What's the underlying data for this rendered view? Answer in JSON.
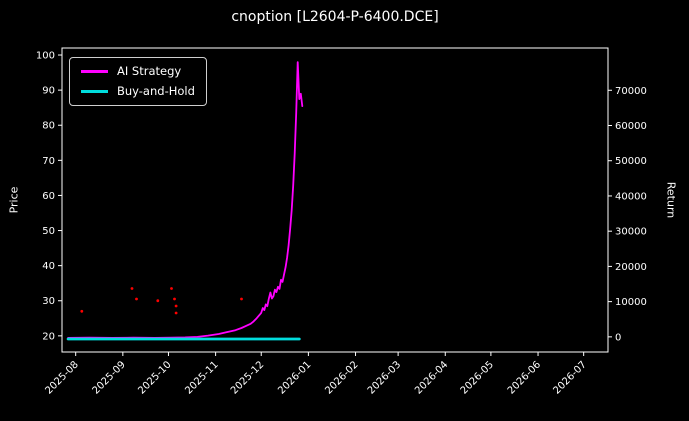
{
  "colors": {
    "background": "#000000",
    "text": "#ffffff",
    "ai_strategy": "#ff00ff",
    "buy_and_hold": "#00dddd",
    "signal_dots": "#ff0000"
  },
  "legend": {
    "items": [
      {
        "label": "AI Strategy",
        "color": "#ff00ff"
      },
      {
        "label": "Buy-and-Hold",
        "color": "#00dddd"
      }
    ]
  },
  "chart_data": {
    "type": "line",
    "title": "cnoption [L2604-P-6400.DCE]",
    "xlabel": "",
    "ylabel_left": "Price",
    "ylabel_right": "Return",
    "x_ticks": [
      "2025-08",
      "2025-09",
      "2025-10",
      "2025-11",
      "2025-12",
      "2026-01",
      "2026-02",
      "2026-03",
      "2026-04",
      "2026-05",
      "2026-06",
      "2026-07"
    ],
    "xlim": [
      "2025-07-23",
      "2026-07-17"
    ],
    "y_left_ticks": [
      20,
      30,
      40,
      50,
      60,
      70,
      80,
      90,
      100
    ],
    "ylim_left": [
      15.4,
      102
    ],
    "y_right_ticks": [
      0,
      10000,
      20000,
      30000,
      40000,
      50000,
      60000,
      70000
    ],
    "ylim_right": [
      -4300,
      82000
    ],
    "grid": false,
    "legend_position": "upper-left",
    "series": [
      {
        "name": "AI Strategy",
        "color": "#ff00ff",
        "axis": "right",
        "width": 1.8,
        "points": [
          [
            "2025-07-27",
            -300
          ],
          [
            "2025-08-10",
            -250
          ],
          [
            "2025-08-25",
            -300
          ],
          [
            "2025-09-08",
            -250
          ],
          [
            "2025-09-22",
            -300
          ],
          [
            "2025-10-03",
            -200
          ],
          [
            "2025-10-12",
            -150
          ],
          [
            "2025-10-20",
            0
          ],
          [
            "2025-10-27",
            350
          ],
          [
            "2025-11-03",
            800
          ],
          [
            "2025-11-08",
            1300
          ],
          [
            "2025-11-14",
            1900
          ],
          [
            "2025-11-18",
            2500
          ],
          [
            "2025-11-21",
            3100
          ],
          [
            "2025-11-24",
            3700
          ],
          [
            "2025-11-26",
            4400
          ],
          [
            "2025-11-28",
            5300
          ],
          [
            "2025-12-01",
            6800
          ],
          [
            "2025-12-02",
            8200
          ],
          [
            "2025-12-03",
            7600
          ],
          [
            "2025-12-04",
            9200
          ],
          [
            "2025-12-05",
            8700
          ],
          [
            "2025-12-06",
            10800
          ],
          [
            "2025-12-07",
            12600
          ],
          [
            "2025-12-08",
            10900
          ],
          [
            "2025-12-09",
            11500
          ],
          [
            "2025-12-10",
            13400
          ],
          [
            "2025-12-11",
            12700
          ],
          [
            "2025-12-12",
            14200
          ],
          [
            "2025-12-13",
            13600
          ],
          [
            "2025-12-14",
            16200
          ],
          [
            "2025-12-15",
            15600
          ],
          [
            "2025-12-16",
            17800
          ],
          [
            "2025-12-17",
            19800
          ],
          [
            "2025-12-18",
            22500
          ],
          [
            "2025-12-19",
            26000
          ],
          [
            "2025-12-20",
            30500
          ],
          [
            "2025-12-21",
            36000
          ],
          [
            "2025-12-22",
            43000
          ],
          [
            "2025-12-23",
            52000
          ],
          [
            "2025-12-24",
            63500
          ],
          [
            "2025-12-25",
            78000
          ],
          [
            "2025-12-26",
            67500
          ],
          [
            "2025-12-27",
            69000
          ],
          [
            "2025-12-28",
            65500
          ]
        ]
      },
      {
        "name": "Buy-and-Hold",
        "color": "#00dddd",
        "axis": "right",
        "width": 2.8,
        "points": [
          [
            "2025-07-27",
            -600
          ],
          [
            "2025-12-26",
            -600
          ]
        ]
      }
    ],
    "scatter": {
      "name": "trade-signals",
      "color": "#ff0000",
      "axis": "left",
      "points": [
        [
          "2025-08-05",
          27
        ],
        [
          "2025-09-07",
          33.5
        ],
        [
          "2025-09-10",
          30.5
        ],
        [
          "2025-09-24",
          30
        ],
        [
          "2025-10-03",
          33.5
        ],
        [
          "2025-10-05",
          30.5
        ],
        [
          "2025-10-06",
          28.5
        ],
        [
          "2025-10-06",
          26.5
        ],
        [
          "2025-11-18",
          30.5
        ]
      ]
    }
  }
}
